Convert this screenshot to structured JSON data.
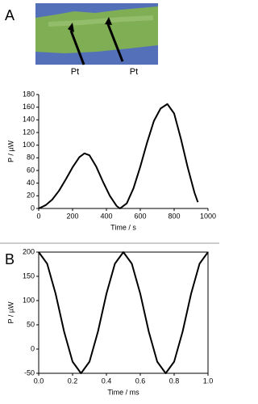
{
  "panels": [
    "A",
    "B"
  ],
  "photo_labels": [
    "Pt",
    "Pt"
  ],
  "chart_data": [
    {
      "type": "line",
      "xlabel": "Time / s",
      "ylabel": "P / µW",
      "x": [
        0,
        40,
        80,
        120,
        160,
        200,
        240,
        270,
        300,
        340,
        380,
        420,
        460,
        480,
        520,
        560,
        600,
        640,
        680,
        720,
        760,
        800,
        840,
        880,
        920,
        940
      ],
      "series": [
        {
          "color": "#000000",
          "values": [
            0,
            5,
            14,
            28,
            46,
            65,
            81,
            87,
            84,
            66,
            42,
            20,
            4,
            0,
            8,
            32,
            66,
            104,
            138,
            158,
            165,
            150,
            110,
            65,
            25,
            10
          ]
        }
      ],
      "xlim": [
        0,
        1000
      ],
      "ylim": [
        0,
        180
      ],
      "xticks": [
        0,
        200,
        400,
        600,
        800,
        1000
      ],
      "yticks": [
        0,
        20,
        40,
        60,
        80,
        100,
        120,
        140,
        160,
        180
      ],
      "frame": false
    },
    {
      "type": "line",
      "xlabel": "Time / ms",
      "ylabel": "P / µW",
      "x": [
        0,
        0.05,
        0.1,
        0.15,
        0.2,
        0.25,
        0.3,
        0.35,
        0.4,
        0.45,
        0.5,
        0.55,
        0.6,
        0.65,
        0.7,
        0.75,
        0.8,
        0.85,
        0.9,
        0.95,
        1.0
      ],
      "series": [
        {
          "color": "#000000",
          "values": [
            200,
            176,
            114,
            36,
            -26,
            -50,
            -26,
            36,
            114,
            176,
            200,
            176,
            114,
            36,
            -26,
            -50,
            -26,
            36,
            114,
            176,
            200
          ]
        }
      ],
      "xlim": [
        0,
        1.0
      ],
      "ylim": [
        -50,
        200
      ],
      "xticks": [
        {
          "value": 0,
          "label": "0.0"
        },
        0.2,
        0.4,
        0.6,
        0.8,
        {
          "value": 1,
          "label": "1.0"
        }
      ],
      "yticks": [
        -50,
        0,
        50,
        100,
        150,
        200
      ],
      "frame": true
    }
  ]
}
